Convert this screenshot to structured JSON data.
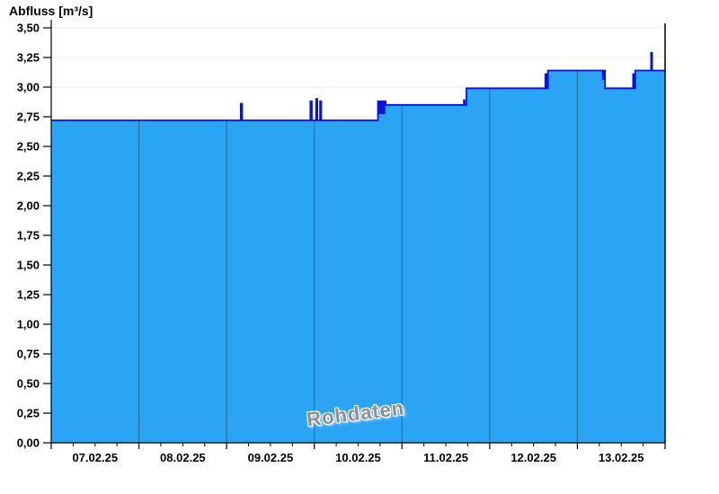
{
  "title": "Abfluss [m³/s]",
  "watermark": "Rohdaten",
  "colors": {
    "area_fill": "#29a5f3",
    "series_line": "#0a12e0",
    "grid_line": "#ebebeb",
    "day_separator": "#2f6f9e",
    "axis": "#000000",
    "label": "#000000",
    "watermark_text": "#8f8f8f",
    "background": "#ffffff"
  },
  "y_axis": {
    "min": 0.0,
    "max": 3.5,
    "step": 0.25,
    "labels": [
      "3,50",
      "3,25",
      "3,00",
      "2,75",
      "2,50",
      "2,25",
      "2,00",
      "1,75",
      "1,50",
      "1,25",
      "1,00",
      "0,75",
      "0,50",
      "0,25",
      "0,00"
    ]
  },
  "x_axis": {
    "labels": [
      "07.02.25",
      "08.02.25",
      "09.02.25",
      "10.02.25",
      "11.02.25",
      "12.02.25",
      "13.02.25"
    ],
    "minor_ticks_per_day": 3
  },
  "chart_data": {
    "type": "area",
    "title": "Abfluss [m³/s]",
    "ylabel": "Abfluss [m³/s]",
    "xlabel": "",
    "ylim": [
      0,
      3.5
    ],
    "x_unit": "days since 07.02.2025 00:00",
    "x_range_days": 7,
    "grid": true,
    "legend": null,
    "step_mode": "step-after",
    "points": [
      [
        0.0,
        2.72
      ],
      [
        2.16,
        2.86
      ],
      [
        2.178,
        2.72
      ],
      [
        2.955,
        2.88
      ],
      [
        2.972,
        2.72
      ],
      [
        3.02,
        2.9
      ],
      [
        3.035,
        2.72
      ],
      [
        3.065,
        2.88
      ],
      [
        3.08,
        2.72
      ],
      [
        3.725,
        2.88
      ],
      [
        3.735,
        2.78
      ],
      [
        3.75,
        2.88
      ],
      [
        3.76,
        2.78
      ],
      [
        3.775,
        2.88
      ],
      [
        3.785,
        2.78
      ],
      [
        3.8,
        2.88
      ],
      [
        3.815,
        2.85
      ],
      [
        4.705,
        2.89
      ],
      [
        4.715,
        2.85
      ],
      [
        4.735,
        2.99
      ],
      [
        5.635,
        3.11
      ],
      [
        5.648,
        2.99
      ],
      [
        5.665,
        3.14
      ],
      [
        6.29,
        3.07
      ],
      [
        6.3,
        3.14
      ],
      [
        6.315,
        2.99
      ],
      [
        6.635,
        3.11
      ],
      [
        6.645,
        2.99
      ],
      [
        6.66,
        3.14
      ],
      [
        6.84,
        3.29
      ],
      [
        6.852,
        3.14
      ]
    ],
    "x_end": 7.0
  }
}
